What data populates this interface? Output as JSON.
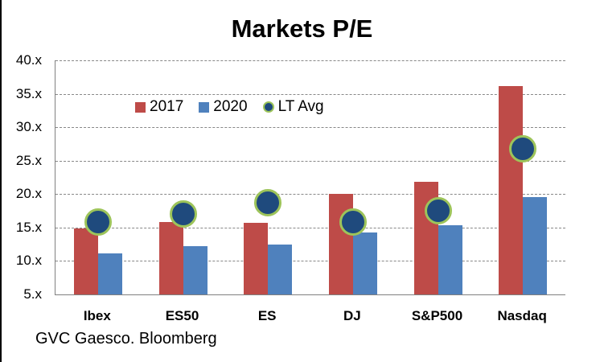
{
  "chart_data": {
    "type": "bar",
    "title": "Markets P/E",
    "categories": [
      "Ibex",
      "ES50",
      "ES",
      "DJ",
      "S&P500",
      "Nasdaq"
    ],
    "series": [
      {
        "name": "2017",
        "type": "bar",
        "color": "#BE4B48",
        "values": [
          14.9,
          15.8,
          15.7,
          20.0,
          21.8,
          36.2
        ]
      },
      {
        "name": "2020",
        "type": "bar",
        "color": "#4F81BD",
        "values": [
          11.1,
          12.2,
          12.5,
          14.3,
          15.4,
          19.5
        ]
      },
      {
        "name": "LT Avg",
        "type": "scatter",
        "marker": "circle",
        "color": "#1F4A7D",
        "marker_border_color": "#9DC45A",
        "values": [
          15.8,
          17.0,
          18.7,
          15.8,
          17.5,
          26.8
        ]
      }
    ],
    "ylim": [
      5,
      40
    ],
    "ytick_interval": 5,
    "ytick_labels": [
      "40.x",
      "35.x",
      "30.x",
      "25.x",
      "20.x",
      "15.x",
      "10.x",
      "5.x"
    ],
    "grid": {
      "horizontal": true,
      "style": "dashed",
      "color": "#888888"
    },
    "legend_position": "top-inside"
  },
  "footer": {
    "source_text": "GVC Gaesco. Bloomberg"
  }
}
